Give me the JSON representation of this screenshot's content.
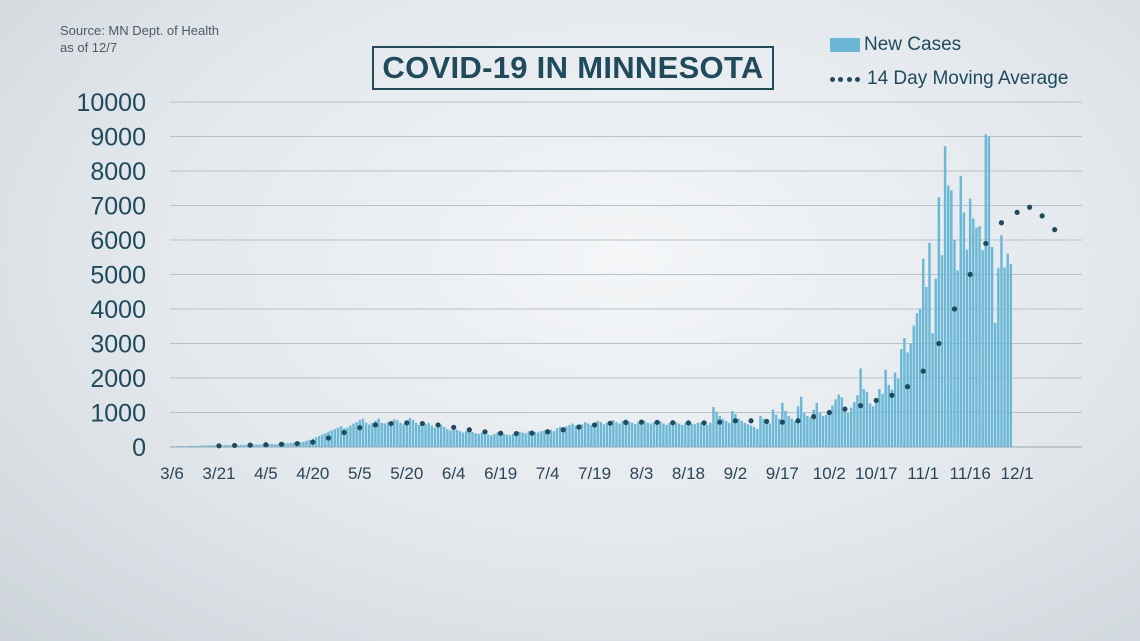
{
  "source_line1": "Source: MN Dept. of Health",
  "source_line2": "as of 12/7",
  "chart_data": {
    "type": "bar",
    "title": "COVID-19 IN MINNESOTA",
    "series": [
      {
        "name": "New Cases",
        "kind": "bar",
        "color": "#6ab8d6"
      },
      {
        "name": "14 Day Moving Average",
        "kind": "dotted-line",
        "color": "#1f4b5c"
      }
    ],
    "ylim": [
      0,
      10000
    ],
    "yticks": [
      0,
      1000,
      2000,
      3000,
      4000,
      5000,
      6000,
      7000,
      8000,
      9000,
      10000
    ],
    "xtick_labels": [
      "3/6",
      "3/21",
      "4/5",
      "4/20",
      "5/5",
      "5/20",
      "6/4",
      "6/19",
      "7/4",
      "7/19",
      "8/3",
      "8/18",
      "9/2",
      "9/17",
      "10/2",
      "10/17",
      "11/1",
      "11/16",
      "12/1"
    ],
    "xtick_day_index": [
      0,
      15,
      30,
      45,
      60,
      75,
      90,
      105,
      120,
      135,
      150,
      165,
      180,
      195,
      210,
      225,
      240,
      255,
      270
    ],
    "grid": true,
    "legend_position": "top-right",
    "weekly_new_cases": [
      {
        "week_start": "3/6",
        "values": [
          20,
          15,
          25,
          30,
          20,
          25,
          30
        ]
      },
      {
        "week_start": "3/13",
        "values": [
          35,
          30,
          40,
          45,
          40,
          50,
          45
        ]
      },
      {
        "week_start": "3/20",
        "values": [
          50,
          55,
          45,
          60,
          55,
          50,
          60
        ]
      },
      {
        "week_start": "3/27",
        "values": [
          55,
          60,
          65,
          70,
          60,
          70,
          75
        ]
      },
      {
        "week_start": "4/3",
        "values": [
          70,
          80,
          75,
          85,
          90,
          80,
          95
        ]
      },
      {
        "week_start": "4/10",
        "values": [
          100,
          110,
          105,
          120,
          130,
          115,
          140
        ]
      },
      {
        "week_start": "4/17",
        "values": [
          150,
          180,
          200,
          240,
          280,
          320,
          360
        ]
      },
      {
        "week_start": "4/24",
        "values": [
          400,
          450,
          480,
          520,
          560,
          600,
          540
        ]
      },
      {
        "week_start": "5/1",
        "values": [
          560,
          620,
          680,
          720,
          780,
          820,
          700
        ]
      },
      {
        "week_start": "5/8",
        "values": [
          650,
          700,
          760,
          820,
          700,
          680,
          720
        ]
      },
      {
        "week_start": "5/15",
        "values": [
          740,
          800,
          780,
          700,
          660,
          720,
          840
        ]
      },
      {
        "week_start": "5/22",
        "values": [
          780,
          700,
          640,
          600,
          660,
          700,
          620
        ]
      },
      {
        "week_start": "5/29",
        "values": [
          560,
          600,
          640,
          580,
          520,
          480,
          540
        ]
      },
      {
        "week_start": "6/5",
        "values": [
          500,
          460,
          420,
          460,
          500,
          440,
          400
        ]
      },
      {
        "week_start": "6/12",
        "values": [
          380,
          420,
          400,
          360,
          340,
          380,
          420
        ]
      },
      {
        "week_start": "6/19",
        "values": [
          400,
          380,
          360,
          340,
          380,
          420,
          440
        ]
      },
      {
        "week_start": "6/26",
        "values": [
          420,
          400,
          460,
          480,
          440,
          420,
          460
        ]
      },
      {
        "week_start": "7/3",
        "values": [
          480,
          520,
          500,
          460,
          540,
          580,
          560
        ]
      },
      {
        "week_start": "7/10",
        "values": [
          600,
          640,
          680,
          620,
          580,
          660,
          720
        ]
      },
      {
        "week_start": "7/17",
        "values": [
          680,
          640,
          700,
          760,
          720,
          660,
          700
        ]
      },
      {
        "week_start": "7/24",
        "values": [
          740,
          780,
          720,
          680,
          760,
          800,
          740
        ]
      },
      {
        "week_start": "7/31",
        "values": [
          700,
          660,
          720,
          780,
          760,
          700,
          680
        ]
      },
      {
        "week_start": "8/7",
        "values": [
          720,
          760,
          740,
          680,
          640,
          700,
          760
        ]
      },
      {
        "week_start": "8/14",
        "values": [
          720,
          680,
          640,
          700,
          740,
          680,
          660
        ]
      },
      {
        "week_start": "8/21",
        "values": [
          700,
          720,
          680,
          640,
          700,
          1160,
          1020
        ]
      },
      {
        "week_start": "8/28",
        "values": [
          900,
          820,
          760,
          700,
          1040,
          960,
          820
        ]
      },
      {
        "week_start": "9/4",
        "values": [
          760,
          700,
          660,
          620,
          580,
          520,
          900
        ]
      },
      {
        "week_start": "9/11",
        "values": [
          820,
          740,
          680,
          1080,
          940,
          820,
          1280
        ]
      },
      {
        "week_start": "9/18",
        "values": [
          1040,
          900,
          820,
          760,
          1180,
          1460,
          980
        ]
      },
      {
        "week_start": "9/25",
        "values": [
          900,
          860,
          1080,
          1280,
          1000,
          900,
          940
        ]
      },
      {
        "week_start": "10/2",
        "values": [
          1020,
          1200,
          1380,
          1520,
          1440,
          1100,
          980
        ]
      },
      {
        "week_start": "10/9",
        "values": [
          1140,
          1300,
          1500,
          2280,
          1680,
          1600,
          1260
        ]
      },
      {
        "week_start": "10/16",
        "values": [
          1180,
          1420,
          1680,
          1540,
          2240,
          1800,
          1660
        ]
      },
      {
        "week_start": "10/23",
        "values": [
          2160,
          1980,
          2840,
          3160,
          2740,
          3000,
          3520
        ]
      },
      {
        "week_start": "10/30",
        "values": [
          3880,
          4000,
          5460,
          4640,
          5920,
          3300,
          4880
        ]
      },
      {
        "week_start": "11/6",
        "values": [
          7240,
          5560,
          8720,
          7580,
          7440,
          6000,
          5120
        ]
      },
      {
        "week_start": "11/13",
        "values": [
          7860,
          6800,
          5720,
          7200,
          6620,
          6360,
          6400
        ]
      },
      {
        "week_start": "11/20",
        "values": [
          5700,
          9060,
          9000,
          5800,
          3600,
          5180,
          6140
        ]
      },
      {
        "week_start": "11/27",
        "values": [
          5200,
          5600,
          5300
        ]
      }
    ],
    "moving_average": [
      {
        "x": 15,
        "y": 35
      },
      {
        "x": 20,
        "y": 45
      },
      {
        "x": 25,
        "y": 55
      },
      {
        "x": 30,
        "y": 65
      },
      {
        "x": 35,
        "y": 80
      },
      {
        "x": 40,
        "y": 100
      },
      {
        "x": 45,
        "y": 140
      },
      {
        "x": 50,
        "y": 260
      },
      {
        "x": 55,
        "y": 420
      },
      {
        "x": 60,
        "y": 560
      },
      {
        "x": 65,
        "y": 640
      },
      {
        "x": 70,
        "y": 680
      },
      {
        "x": 75,
        "y": 700
      },
      {
        "x": 80,
        "y": 680
      },
      {
        "x": 85,
        "y": 640
      },
      {
        "x": 90,
        "y": 570
      },
      {
        "x": 95,
        "y": 500
      },
      {
        "x": 100,
        "y": 440
      },
      {
        "x": 105,
        "y": 400
      },
      {
        "x": 110,
        "y": 390
      },
      {
        "x": 115,
        "y": 400
      },
      {
        "x": 120,
        "y": 440
      },
      {
        "x": 125,
        "y": 500
      },
      {
        "x": 130,
        "y": 580
      },
      {
        "x": 135,
        "y": 640
      },
      {
        "x": 140,
        "y": 690
      },
      {
        "x": 145,
        "y": 710
      },
      {
        "x": 150,
        "y": 720
      },
      {
        "x": 155,
        "y": 715
      },
      {
        "x": 160,
        "y": 705
      },
      {
        "x": 165,
        "y": 700
      },
      {
        "x": 170,
        "y": 700
      },
      {
        "x": 175,
        "y": 720
      },
      {
        "x": 180,
        "y": 760
      },
      {
        "x": 185,
        "y": 760
      },
      {
        "x": 190,
        "y": 740
      },
      {
        "x": 195,
        "y": 720
      },
      {
        "x": 200,
        "y": 760
      },
      {
        "x": 205,
        "y": 880
      },
      {
        "x": 210,
        "y": 1000
      },
      {
        "x": 215,
        "y": 1100
      },
      {
        "x": 220,
        "y": 1200
      },
      {
        "x": 225,
        "y": 1350
      },
      {
        "x": 230,
        "y": 1500
      },
      {
        "x": 235,
        "y": 1750
      },
      {
        "x": 240,
        "y": 2200
      },
      {
        "x": 245,
        "y": 3000
      },
      {
        "x": 250,
        "y": 4000
      },
      {
        "x": 255,
        "y": 5000
      },
      {
        "x": 260,
        "y": 5900
      },
      {
        "x": 265,
        "y": 6500
      },
      {
        "x": 270,
        "y": 6800
      },
      {
        "x": 274,
        "y": 6950
      },
      {
        "x": 278,
        "y": 6700
      },
      {
        "x": 282,
        "y": 6300
      }
    ]
  }
}
